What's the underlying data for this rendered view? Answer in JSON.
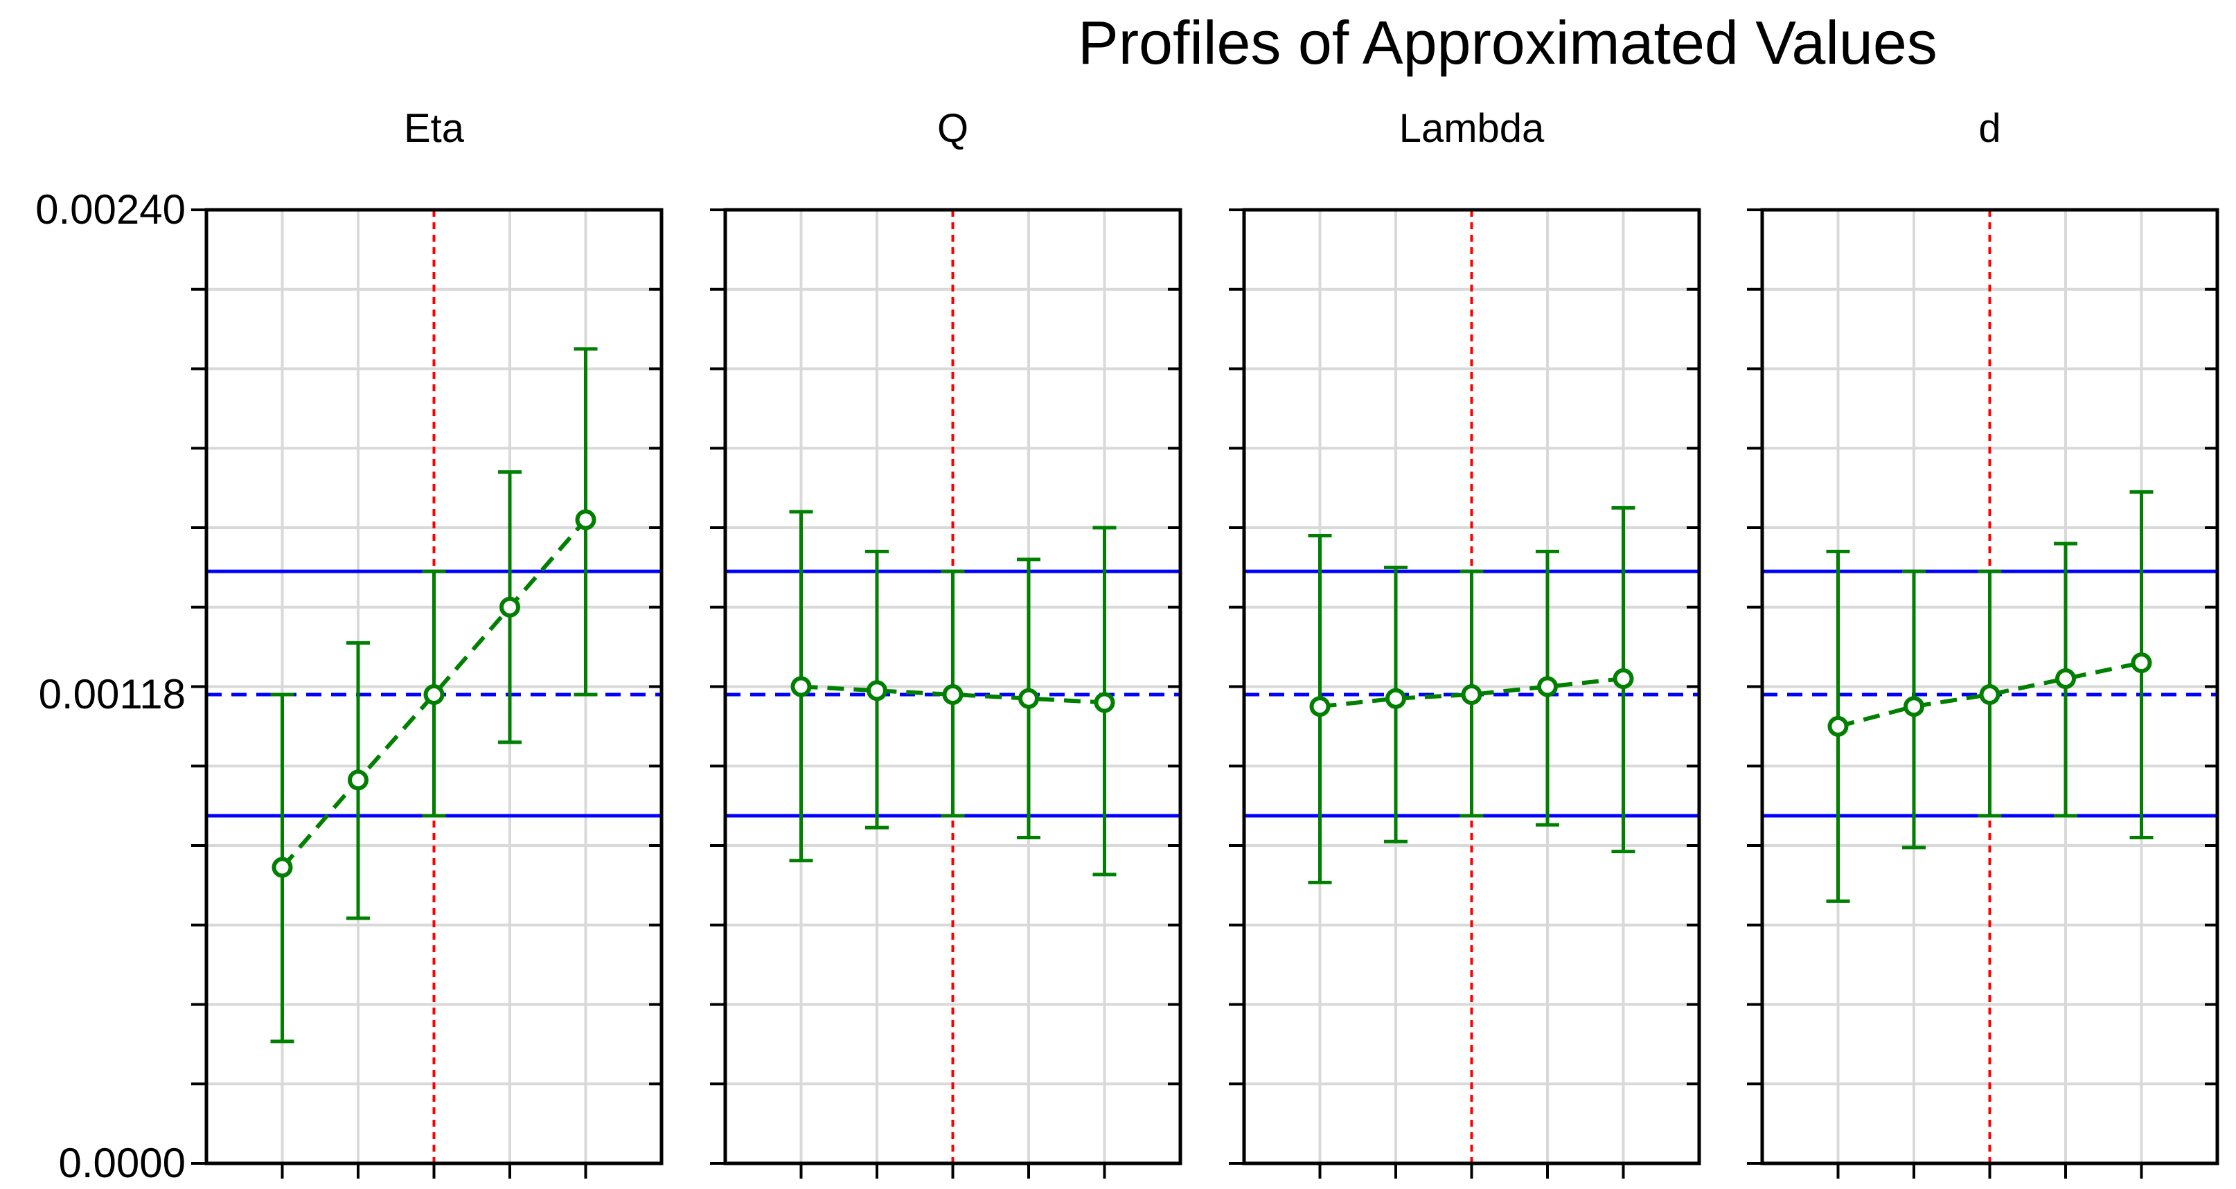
{
  "chart_data": {
    "type": "line",
    "title": "Profiles of Approximated  Values",
    "ylim": [
      0,
      0.0024
    ],
    "y_tick_labels": [
      "0.00240",
      "0.00118",
      "0.0000"
    ],
    "y_tick_values": [
      0.0024,
      0.00118,
      0.0
    ],
    "grid": true,
    "reference_lines": {
      "mean": 0.00118,
      "upper": 0.00149,
      "lower": 0.000875,
      "mean_color": "#0000ff",
      "bound_color": "#0000ff",
      "current_x_color": "#ff0000"
    },
    "series_color": "#007f00",
    "panels": [
      {
        "name": "Eta",
        "points": [
          {
            "value": 0.000745,
            "lower": 0.000307,
            "upper": 0.00118
          },
          {
            "value": 0.000965,
            "lower": 0.000617,
            "upper": 0.00131
          },
          {
            "value": 0.00118,
            "lower": 0.000875,
            "upper": 0.00149
          },
          {
            "value": 0.0014,
            "lower": 0.00106,
            "upper": 0.00174
          },
          {
            "value": 0.00162,
            "lower": 0.00118,
            "upper": 0.00205
          }
        ]
      },
      {
        "name": "Q",
        "points": [
          {
            "value": 0.0012,
            "lower": 0.000762,
            "upper": 0.00164
          },
          {
            "value": 0.00119,
            "lower": 0.000845,
            "upper": 0.00154
          },
          {
            "value": 0.00118,
            "lower": 0.000875,
            "upper": 0.00149
          },
          {
            "value": 0.00117,
            "lower": 0.00082,
            "upper": 0.00152
          },
          {
            "value": 0.00116,
            "lower": 0.000727,
            "upper": 0.0016
          }
        ]
      },
      {
        "name": "Lambda",
        "points": [
          {
            "value": 0.00115,
            "lower": 0.000707,
            "upper": 0.00158
          },
          {
            "value": 0.00117,
            "lower": 0.00081,
            "upper": 0.0015
          },
          {
            "value": 0.00118,
            "lower": 0.000875,
            "upper": 0.00149
          },
          {
            "value": 0.0012,
            "lower": 0.000852,
            "upper": 0.00154
          },
          {
            "value": 0.00122,
            "lower": 0.000785,
            "upper": 0.00165
          }
        ]
      },
      {
        "name": "d",
        "points": [
          {
            "value": 0.0011,
            "lower": 0.00066,
            "upper": 0.00154
          },
          {
            "value": 0.00115,
            "lower": 0.000795,
            "upper": 0.00149
          },
          {
            "value": 0.00118,
            "lower": 0.000875,
            "upper": 0.00149
          },
          {
            "value": 0.00122,
            "lower": 0.000875,
            "upper": 0.00156
          },
          {
            "value": 0.00126,
            "lower": 0.00082,
            "upper": 0.00169
          }
        ]
      }
    ]
  }
}
